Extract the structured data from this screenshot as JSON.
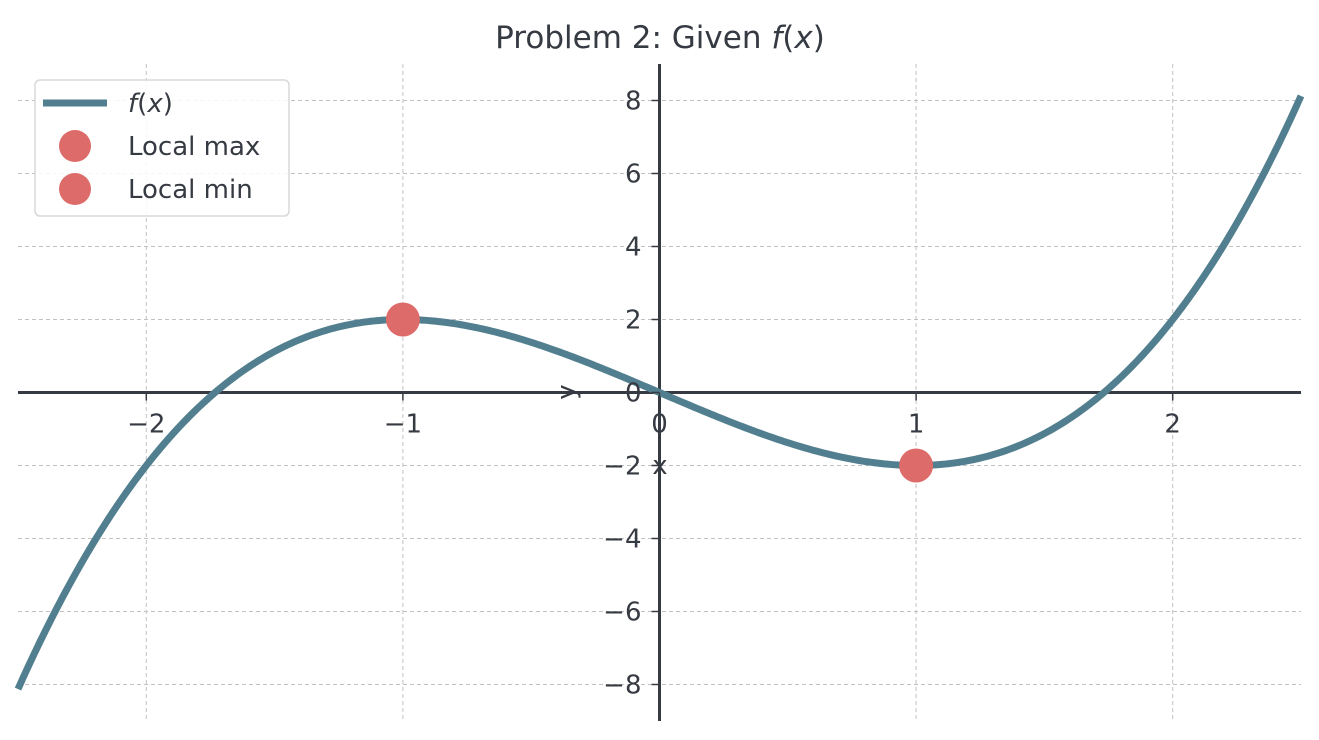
{
  "chart_data": {
    "type": "line",
    "title": "Problem 2: Given f(x)",
    "title_plain": "Problem 2: Given ",
    "title_math_f": "f",
    "title_math_open": "(",
    "title_math_x": "x",
    "title_math_close": ")",
    "xlabel": "x",
    "ylabel": "y",
    "xlim": [
      -2.5,
      2.5
    ],
    "ylim": [
      -9,
      9
    ],
    "x_ticks": [
      -2,
      -1,
      0,
      1,
      2
    ],
    "x_tick_labels": [
      "−2",
      "−1",
      "0",
      "1",
      "2"
    ],
    "y_ticks": [
      -8,
      -6,
      -4,
      -2,
      0,
      2,
      4,
      6,
      8
    ],
    "y_tick_labels": [
      "−8",
      "−6",
      "−4",
      "−2",
      "0",
      "2",
      "4",
      "6",
      "8"
    ],
    "grid": true,
    "legend_position": "top-left",
    "series": [
      {
        "name": "f(x)",
        "legend_f": "f",
        "legend_open": "(",
        "legend_x": "x",
        "legend_close": ")",
        "kind": "line",
        "color": "#527f8f",
        "x": [
          -2.5,
          -2.25,
          -2.0,
          -1.75,
          -1.5,
          -1.25,
          -1.0,
          -0.75,
          -0.5,
          -0.25,
          0.0,
          0.25,
          0.5,
          0.75,
          1.0,
          1.25,
          1.5,
          1.75,
          2.0,
          2.25,
          2.5
        ],
        "y": [
          -8.125,
          -4.64,
          -2.0,
          -0.11,
          1.125,
          1.8,
          2.0,
          1.83,
          1.375,
          0.73,
          0.0,
          -0.73,
          -1.375,
          -1.83,
          -2.0,
          -1.8,
          -1.125,
          0.11,
          2.0,
          4.64,
          8.125
        ]
      },
      {
        "name": "Local max",
        "kind": "marker",
        "color": "#dd6b69",
        "x": [
          -1
        ],
        "y": [
          2
        ]
      },
      {
        "name": "Local min",
        "kind": "marker",
        "color": "#dd6b69",
        "x": [
          1
        ],
        "y": [
          -2
        ]
      }
    ]
  },
  "colors": {
    "axis": "#363a42",
    "text": "#363a42",
    "grid": "#c2c2c2",
    "curve": "#527f8f",
    "marker": "#dd6b69"
  }
}
